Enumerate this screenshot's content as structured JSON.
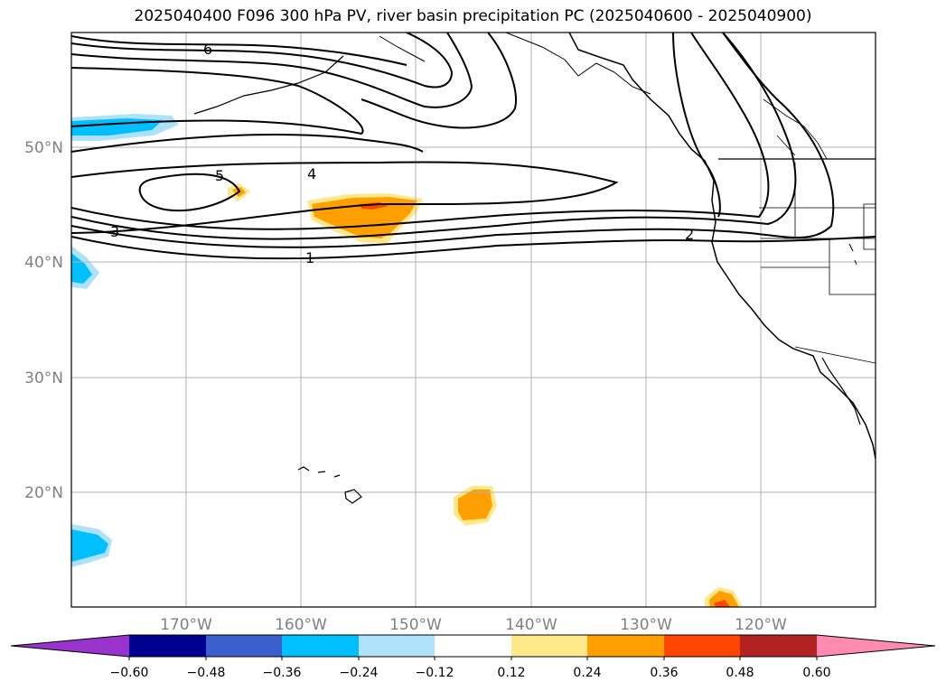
{
  "title": "2025040400 F096 300 hPa PV, river basin precipitation PC (2025040600 - 2025040900)",
  "map": {
    "lon_range": [
      -180,
      -110
    ],
    "lat_range": [
      10,
      60
    ],
    "lon_ticks": [
      {
        "value": -170,
        "label": "170°W"
      },
      {
        "value": -160,
        "label": "160°W"
      },
      {
        "value": -150,
        "label": "150°W"
      },
      {
        "value": -140,
        "label": "140°W"
      },
      {
        "value": -130,
        "label": "130°W"
      },
      {
        "value": -120,
        "label": "120°W"
      }
    ],
    "lat_ticks": [
      {
        "value": 20,
        "label": "20°N"
      },
      {
        "value": 30,
        "label": "30°N"
      },
      {
        "value": 40,
        "label": "40°N"
      },
      {
        "value": 50,
        "label": "50°N"
      }
    ],
    "gridlines": true,
    "pv_contour_labels": [
      "1",
      "2",
      "3",
      "4",
      "5",
      "6"
    ],
    "colorbar": {
      "levels": [
        "−0.60",
        "−0.48",
        "−0.36",
        "−0.24",
        "−0.12",
        "0.12",
        "0.24",
        "0.36",
        "0.48",
        "0.60"
      ],
      "colors": [
        "#9933cc",
        "#000090",
        "#3a5fcd",
        "#00bfff",
        "#aee2fa",
        "#ffffff",
        "#ffe88a",
        "#ffa000",
        "#ff4500",
        "#b22222",
        "#ff8cb0"
      ],
      "extend": "both"
    }
  }
}
